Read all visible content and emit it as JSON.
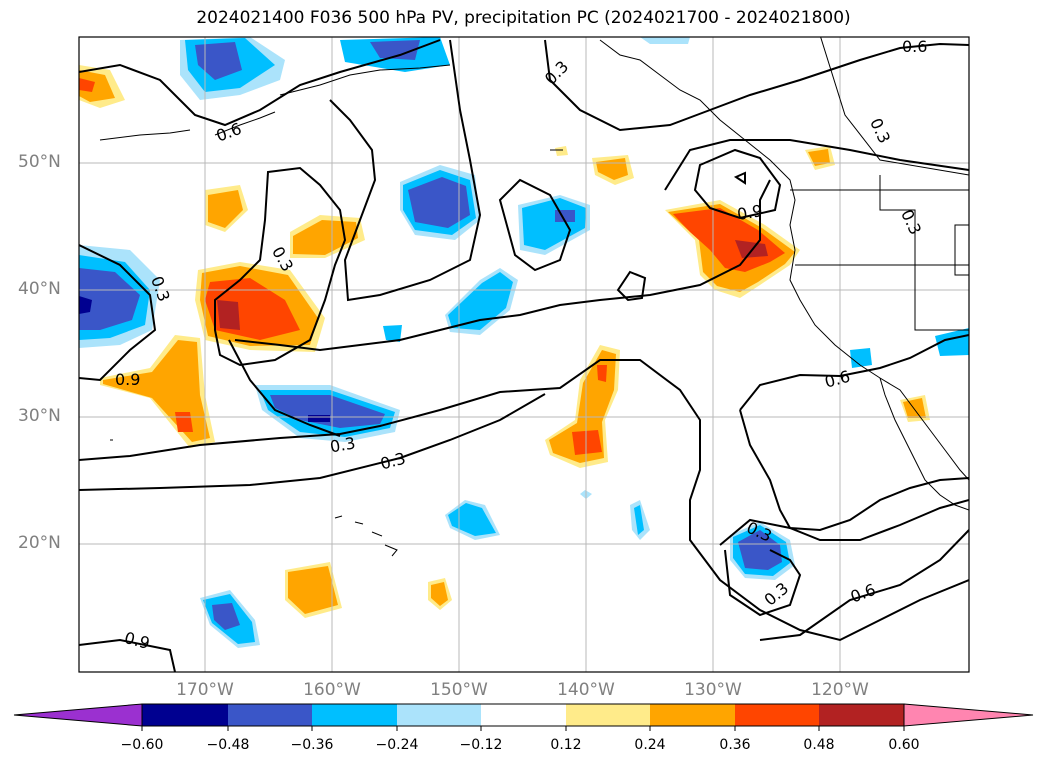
{
  "title": "2024021400 F036 500 hPa PV, precipitation PC (2024021700 - 2024021800)",
  "latitude_labels": [
    "50°N",
    "40°N",
    "30°N",
    "20°N"
  ],
  "longitude_labels": [
    "170°W",
    "160°W",
    "150°W",
    "140°W",
    "130°W",
    "120°W"
  ],
  "contour_labels": [
    "0.6",
    "0.3",
    "0.6",
    "0.9",
    "0.3",
    "0.3",
    "0.3",
    "0.3",
    "0.9",
    "0.3",
    "0.3",
    "0.6",
    "0.3",
    "0.3",
    "0.6",
    "0.9",
    "0.3",
    "0.6",
    "0.3",
    "0.6"
  ],
  "colorbar": {
    "ticks": [
      "−0.60",
      "−0.48",
      "−0.36",
      "−0.24",
      "−0.12",
      "0.12",
      "0.24",
      "0.36",
      "0.48",
      "0.60"
    ],
    "colors": [
      "#9b30d0",
      "#000090",
      "#3a56c8",
      "#00bfff",
      "#abe3fb",
      "#ffffff",
      "#ffeb8a",
      "#ffa500",
      "#ff4500",
      "#b22222",
      "#ff85b0"
    ]
  }
}
